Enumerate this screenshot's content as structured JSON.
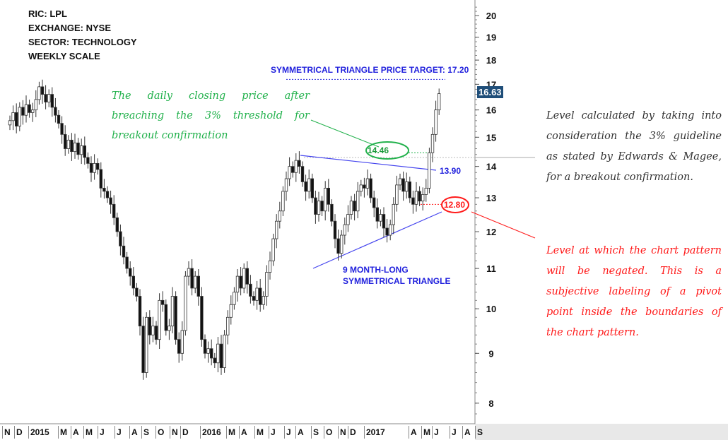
{
  "info": {
    "ric": "RIC: LPL",
    "exchange": "EXCHANGE: NYSE",
    "sector": "SECTOR: TECHNOLOGY",
    "scale": "WEEKLY SCALE"
  },
  "annotations": {
    "green_note": "The daily closing price after breaching the 3% threshold for breakout confirmation",
    "grey_note": "Level calculated by taking into consideration the 3% guideline as stated by Edwards & Magee, for a breakout confirmation.",
    "red_note": "Level at which the chart pattern will be negated. This is a subjective labeling of a pivot point inside the boundaries of the chart pattern.",
    "price_target": "SYMMETRICAL TRIANGLE PRICE TARGET: 17.20",
    "breakout_level": "14.46",
    "upper_trend": "13.90",
    "negation_level": "12.80",
    "triangle_line1": "9 MONTH-LONG",
    "triangle_line2": "SYMMETRICAL TRIANGLE",
    "last_price": "16.63"
  },
  "colors": {
    "green": "#22b14c",
    "blue": "#2222dd",
    "red": "#ff1a1a",
    "last_box": "#1f4e79"
  },
  "chart_data": {
    "type": "candlestick",
    "scale": "log",
    "ylim": [
      7.6,
      20.6
    ],
    "yticks": [
      8,
      9,
      10,
      11,
      12,
      13,
      14,
      15,
      16,
      17,
      18,
      19,
      20
    ],
    "xlabels": [
      "N",
      "D",
      "2015",
      "M",
      "A",
      "M",
      "J",
      "J",
      "A",
      "S",
      "O",
      "N",
      "D",
      "2016",
      "M",
      "A",
      "M",
      "J",
      "J",
      "A",
      "S",
      "O",
      "N",
      "D",
      "2017",
      "A",
      "M",
      "J",
      "J",
      "A",
      "S"
    ],
    "levels": {
      "price_target": 17.2,
      "breakout_close": 14.46,
      "upper_trendline": 13.9,
      "negation": 12.8,
      "threshold": 14.3
    },
    "closes": [
      15.6,
      15.9,
      15.4,
      16.1,
      15.8,
      16.2,
      15.9,
      16.0,
      16.4,
      16.9,
      16.6,
      16.3,
      16.6,
      16.1,
      15.8,
      15.5,
      15.1,
      14.6,
      14.9,
      14.5,
      14.8,
      14.4,
      14.7,
      14.3,
      14.1,
      13.8,
      14.1,
      13.9,
      13.3,
      13.2,
      13.0,
      12.8,
      12.4,
      12.0,
      11.6,
      11.3,
      11.0,
      10.8,
      10.5,
      10.3,
      9.6,
      8.6,
      9.8,
      9.4,
      9.6,
      9.3,
      10.2,
      10.1,
      9.5,
      9.6,
      10.3,
      9.3,
      9.0,
      9.5,
      10.8,
      11.0,
      10.5,
      10.8,
      10.3,
      9.3,
      9.0,
      9.1,
      8.9,
      8.8,
      9.2,
      8.7,
      9.4,
      9.8,
      10.1,
      10.4,
      10.8,
      10.5,
      11.0,
      10.6,
      10.3,
      10.2,
      10.5,
      10.1,
      10.3,
      10.9,
      11.2,
      11.8,
      12.3,
      12.6,
      13.2,
      13.6,
      14.0,
      13.8,
      14.2,
      14.0,
      13.5,
      13.2,
      13.6,
      13.0,
      12.5,
      12.9,
      12.6,
      13.3,
      12.8,
      12.3,
      11.8,
      11.4,
      11.9,
      12.2,
      12.5,
      12.9,
      12.6,
      13.2,
      13.4,
      13.3,
      13.6,
      13.0,
      12.7,
      12.3,
      12.5,
      12.1,
      11.9,
      12.2,
      12.8,
      13.4,
      13.6,
      13.2,
      13.5,
      13.0,
      12.8,
      13.2,
      12.9,
      13.1,
      13.3,
      14.46,
      15.1,
      16.0,
      16.63
    ]
  }
}
